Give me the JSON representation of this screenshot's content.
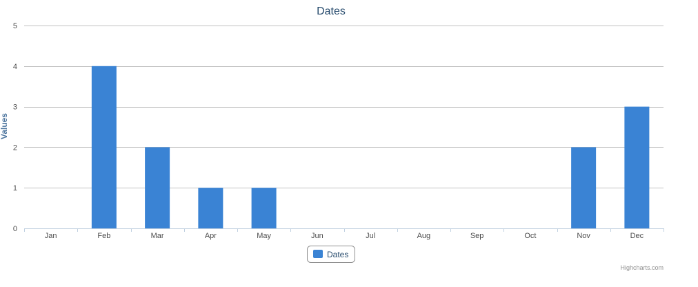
{
  "chart_data": {
    "type": "bar",
    "title": "Dates",
    "xlabel": "",
    "ylabel": "Values",
    "categories": [
      "Jan",
      "Feb",
      "Mar",
      "Apr",
      "May",
      "Jun",
      "Jul",
      "Aug",
      "Sep",
      "Oct",
      "Nov",
      "Dec"
    ],
    "series": [
      {
        "name": "Dates",
        "values": [
          0,
          4,
          2,
          1,
          1,
          0,
          0,
          0,
          0,
          0,
          2,
          3
        ]
      }
    ],
    "ylim": [
      0,
      5
    ],
    "yticks": [
      0,
      1,
      2,
      3,
      4,
      5
    ],
    "grid": true,
    "legend": "bottom-center",
    "bar_color": "#3a83d4",
    "grid_color": "#c0c0c0",
    "axis_color": "#c0d0e0"
  },
  "credit": "Highcharts.com"
}
